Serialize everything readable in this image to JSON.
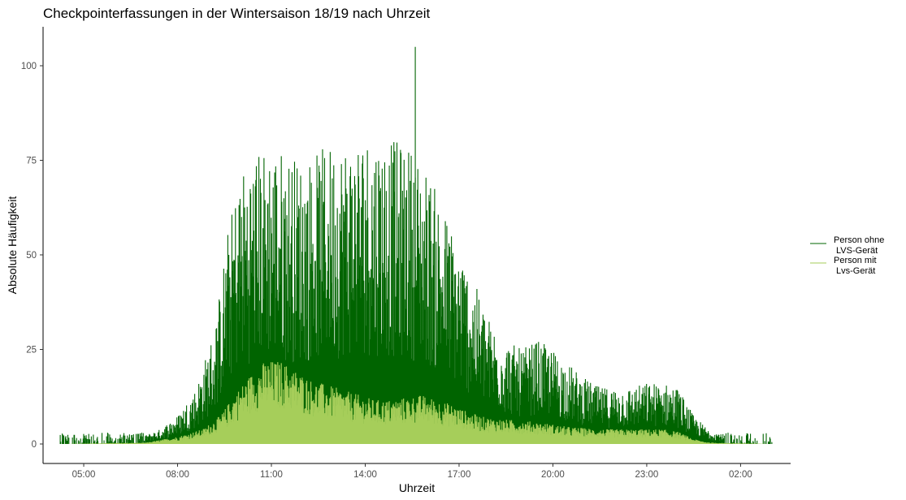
{
  "chart_data": {
    "type": "bar",
    "title": "Checkpointerfassungen in der Wintersaison 18/19 nach Uhrzeit",
    "xlabel": "Uhrzeit",
    "ylabel": "Absolute Häufigkeit",
    "x_ticks": [
      "05:00",
      "08:00",
      "11:00",
      "14:00",
      "17:00",
      "20:00",
      "23:00",
      "02:00"
    ],
    "y_ticks": [
      0,
      25,
      50,
      75,
      100
    ],
    "ylim": [
      0,
      105
    ],
    "xlim_hours": [
      3.7,
      27.6
    ],
    "legend_position": "right",
    "grid": false,
    "series": [
      {
        "name_lines": [
          "Person ohne",
          "LVS-Gerät"
        ],
        "color": "#006400",
        "envelope": [
          [
            4.2,
            1
          ],
          [
            5.5,
            0.5
          ],
          [
            6.8,
            1.5
          ],
          [
            7.4,
            3
          ],
          [
            8.0,
            6
          ],
          [
            8.6,
            12
          ],
          [
            9.2,
            25
          ],
          [
            9.6,
            45
          ],
          [
            10.0,
            58
          ],
          [
            10.5,
            62
          ],
          [
            11.0,
            64
          ],
          [
            11.5,
            62
          ],
          [
            12.0,
            60
          ],
          [
            12.5,
            62
          ],
          [
            13.0,
            64
          ],
          [
            13.5,
            65
          ],
          [
            14.0,
            66
          ],
          [
            14.5,
            66
          ],
          [
            15.0,
            64
          ],
          [
            15.5,
            63
          ],
          [
            16.0,
            58
          ],
          [
            16.5,
            50
          ],
          [
            17.0,
            42
          ],
          [
            17.5,
            34
          ],
          [
            18.0,
            26
          ],
          [
            18.5,
            22
          ],
          [
            19.0,
            20
          ],
          [
            19.5,
            22
          ],
          [
            20.0,
            20
          ],
          [
            20.5,
            17
          ],
          [
            21.0,
            14
          ],
          [
            21.5,
            12
          ],
          [
            22.0,
            12
          ],
          [
            22.5,
            12
          ],
          [
            23.0,
            13
          ],
          [
            23.5,
            13
          ],
          [
            24.0,
            12
          ],
          [
            24.5,
            6
          ],
          [
            25.0,
            3
          ],
          [
            25.5,
            2
          ],
          [
            26.5,
            1
          ],
          [
            27.0,
            1
          ]
        ],
        "max_point": {
          "x_hour": 15.6,
          "y": 105
        }
      },
      {
        "name_lines": [
          "Person mit",
          "Lvs-Gerät"
        ],
        "color": "#a6ce5a",
        "envelope": [
          [
            4.2,
            0
          ],
          [
            7.0,
            0.3
          ],
          [
            8.0,
            1.5
          ],
          [
            8.8,
            3
          ],
          [
            9.4,
            6
          ],
          [
            9.8,
            10
          ],
          [
            10.3,
            14
          ],
          [
            10.8,
            17
          ],
          [
            11.3,
            17
          ],
          [
            11.8,
            15
          ],
          [
            12.3,
            13
          ],
          [
            12.8,
            12
          ],
          [
            13.3,
            11
          ],
          [
            13.8,
            10
          ],
          [
            14.3,
            9
          ],
          [
            14.8,
            9
          ],
          [
            15.3,
            9.5
          ],
          [
            15.8,
            10
          ],
          [
            16.3,
            9
          ],
          [
            16.8,
            8
          ],
          [
            17.3,
            6.5
          ],
          [
            17.8,
            5.5
          ],
          [
            18.5,
            5
          ],
          [
            19.5,
            4.5
          ],
          [
            20.5,
            3.5
          ],
          [
            21.5,
            3
          ],
          [
            22.5,
            3
          ],
          [
            23.5,
            3
          ],
          [
            24.0,
            2.5
          ],
          [
            24.5,
            1
          ],
          [
            25.0,
            0.3
          ],
          [
            27.0,
            0
          ]
        ]
      }
    ]
  }
}
